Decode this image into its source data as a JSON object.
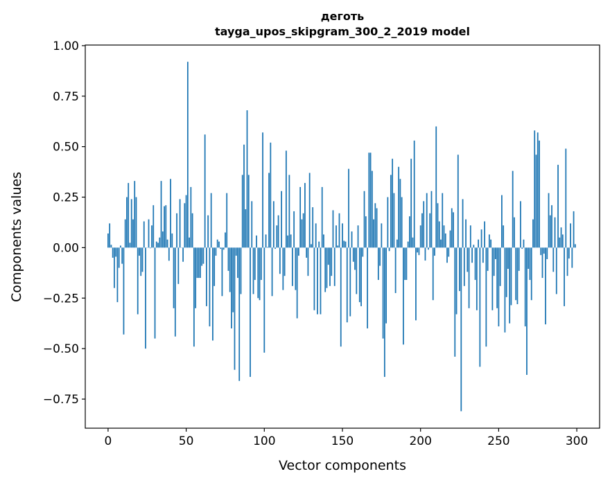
{
  "chart_data": {
    "type": "bar",
    "title_line1": "деготь",
    "title_line2": "tayga_upos_skipgram_300_2_2019 model",
    "xlabel": "Vector components",
    "ylabel": "Components values",
    "xlim": [
      -14.6,
      314.6
    ],
    "ylim": [
      -0.894,
      1.003
    ],
    "xticks": [
      0,
      50,
      100,
      150,
      200,
      250,
      300
    ],
    "xtick_labels": [
      "0",
      "50",
      "100",
      "150",
      "200",
      "250",
      "300"
    ],
    "yticks": [
      -0.75,
      -0.5,
      -0.25,
      0,
      0.25,
      0.5,
      0.75,
      1.0
    ],
    "ytick_labels": [
      "−0.75",
      "−0.50",
      "−0.25",
      "0.00",
      "0.25",
      "0.50",
      "0.75",
      "1.00"
    ],
    "grid": false,
    "bar_color": "#1f77b4",
    "values": [
      0.07,
      0.12,
      0.014,
      -0.05,
      -0.2,
      -0.045,
      -0.27,
      -0.1,
      0.01,
      -0.08,
      -0.43,
      0.14,
      0.25,
      0.32,
      0.024,
      0.24,
      0.14,
      0.33,
      0.25,
      -0.33,
      -0.04,
      -0.14,
      -0.12,
      0.13,
      -0.5,
      0.0,
      0.14,
      -0.003,
      0.11,
      0.21,
      -0.45,
      0.03,
      0.024,
      0.05,
      0.33,
      0.08,
      0.205,
      0.21,
      0.04,
      -0.065,
      0.34,
      0.07,
      -0.3,
      -0.44,
      0.17,
      -0.18,
      0.24,
      0.0,
      -0.07,
      0.22,
      0.26,
      0.92,
      0.05,
      0.3,
      0.17,
      -0.49,
      -0.3,
      -0.15,
      -0.15,
      -0.15,
      -0.09,
      -0.08,
      0.56,
      -0.29,
      0.16,
      -0.39,
      0.27,
      -0.46,
      -0.19,
      -0.04,
      0.04,
      0.03,
      -0.006,
      -0.24,
      -0.01,
      0.075,
      0.27,
      -0.115,
      -0.22,
      -0.4,
      -0.32,
      -0.605,
      -0.04,
      -0.15,
      -0.66,
      -0.23,
      0.36,
      0.51,
      0.19,
      0.68,
      0.36,
      -0.64,
      0.23,
      -0.23,
      -0.16,
      0.06,
      -0.25,
      -0.26,
      -0.16,
      0.57,
      -0.52,
      0.065,
      0.003,
      0.37,
      0.52,
      -0.24,
      0.23,
      -0.006,
      0.11,
      0.16,
      -0.13,
      0.28,
      -0.21,
      -0.14,
      0.48,
      0.06,
      0.36,
      0.065,
      -0.19,
      0.18,
      -0.21,
      -0.35,
      -0.04,
      0.3,
      0.14,
      0.17,
      0.32,
      -0.05,
      -0.14,
      0.37,
      0.017,
      0.2,
      -0.31,
      0.12,
      -0.33,
      0.03,
      -0.33,
      0.3,
      0.065,
      -0.22,
      -0.2,
      -0.085,
      -0.19,
      -0.14,
      0.185,
      -0.19,
      0.11,
      0.01,
      0.17,
      -0.49,
      0.12,
      0.034,
      0.03,
      -0.37,
      0.39,
      -0.34,
      0.08,
      -0.07,
      -0.11,
      -0.23,
      0.11,
      -0.27,
      -0.29,
      -0.045,
      0.28,
      0.155,
      -0.4,
      0.47,
      0.47,
      0.38,
      0.14,
      0.22,
      0.195,
      -0.16,
      -0.09,
      0.12,
      -0.45,
      -0.64,
      -0.375,
      0.25,
      -0.017,
      0.36,
      0.44,
      0.27,
      -0.225,
      0.04,
      0.4,
      0.34,
      0.25,
      -0.48,
      -0.16,
      -0.16,
      0.03,
      0.155,
      0.44,
      0.05,
      0.53,
      -0.36,
      -0.024,
      -0.037,
      0.11,
      0.17,
      0.23,
      -0.064,
      0.27,
      -0.01,
      0.17,
      0.28,
      -0.26,
      -0.04,
      0.6,
      0.22,
      0.13,
      0.04,
      0.27,
      0.11,
      0.07,
      -0.075,
      -0.045,
      0.085,
      0.195,
      0.175,
      -0.54,
      -0.33,
      0.46,
      -0.215,
      -0.81,
      0.24,
      -0.19,
      0.14,
      -0.12,
      -0.3,
      0.11,
      -0.075,
      0.014,
      -0.16,
      -0.31,
      0.04,
      -0.59,
      0.09,
      -0.075,
      0.13,
      -0.49,
      -0.115,
      0.065,
      0.04,
      -0.31,
      -0.14,
      -0.057,
      -0.3,
      -0.39,
      -0.19,
      0.26,
      0.11,
      -0.42,
      -0.245,
      -0.105,
      -0.375,
      -0.285,
      0.38,
      0.15,
      -0.26,
      -0.28,
      -0.115,
      0.23,
      -0.006,
      0.04,
      -0.39,
      -0.63,
      -0.105,
      -0.16,
      -0.26,
      0.14,
      0.58,
      0.46,
      0.57,
      0.53,
      -0.037,
      -0.15,
      -0.03,
      -0.38,
      -0.057,
      0.27,
      0.16,
      0.21,
      -0.12,
      0.15,
      -0.23,
      0.41,
      0.05,
      0.1,
      0.065,
      -0.29,
      0.49,
      -0.14,
      -0.054,
      0.12,
      -0.1,
      0.18,
      0.017
    ]
  }
}
